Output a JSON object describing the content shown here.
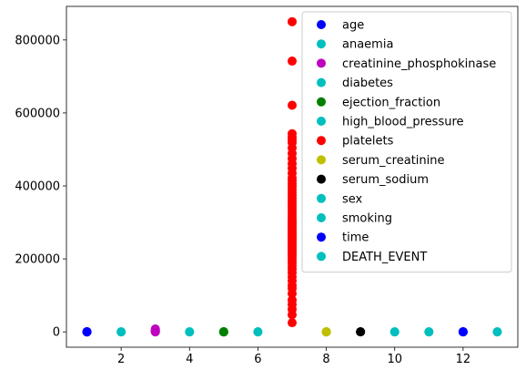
{
  "chart_data": {
    "type": "scatter",
    "title": "",
    "xlabel": "",
    "ylabel": "",
    "xlim": [
      0.4,
      13.6
    ],
    "ylim": [
      -42000,
      892000
    ],
    "x_ticks": [
      2,
      4,
      6,
      8,
      10,
      12
    ],
    "x_tick_labels": [
      "2",
      "4",
      "6",
      "8",
      "10",
      "12"
    ],
    "y_ticks": [
      0,
      200000,
      400000,
      600000,
      800000
    ],
    "y_tick_labels": [
      "0",
      "200000",
      "400000",
      "600000",
      "800000"
    ],
    "grid": false,
    "legend_position": "upper-right",
    "series": [
      {
        "name": "age",
        "color": "#0000ff",
        "x": [
          1,
          1,
          1,
          1,
          1
        ],
        "y": [
          40,
          50,
          60,
          70,
          95
        ]
      },
      {
        "name": "anaemia",
        "color": "#00bfbf",
        "x": [
          2,
          2
        ],
        "y": [
          0,
          1
        ]
      },
      {
        "name": "creatinine_phosphokinase",
        "color": "#bf00bf",
        "x": [
          3,
          3,
          3,
          3,
          3,
          3
        ],
        "y": [
          23,
          500,
          1500,
          3000,
          5000,
          7861
        ]
      },
      {
        "name": "diabetes",
        "color": "#00bfbf",
        "x": [
          4,
          4
        ],
        "y": [
          0,
          1
        ]
      },
      {
        "name": "ejection_fraction",
        "color": "#008000",
        "x": [
          5,
          5,
          5,
          5
        ],
        "y": [
          14,
          30,
          45,
          80
        ]
      },
      {
        "name": "high_blood_pressure",
        "color": "#00bfbf",
        "x": [
          6,
          6
        ],
        "y": [
          0,
          1
        ]
      },
      {
        "name": "platelets",
        "color": "#ff0000",
        "x": [
          7,
          7,
          7,
          7,
          7,
          7,
          7,
          7,
          7,
          7,
          7,
          7,
          7,
          7,
          7,
          7,
          7,
          7,
          7,
          7,
          7,
          7,
          7,
          7,
          7,
          7,
          7,
          7,
          7,
          7,
          7,
          7,
          7,
          7,
          7,
          7,
          7,
          7,
          7,
          7,
          7,
          7,
          7,
          7,
          7,
          7,
          7,
          7,
          7,
          7,
          7,
          7,
          7,
          7,
          7,
          7,
          7,
          7,
          7,
          7,
          7,
          7
        ],
        "y": [
          25100,
          47000,
          62000,
          75000,
          87000,
          105000,
          119000,
          127000,
          140000,
          151000,
          162000,
          172000,
          181000,
          189000,
          196000,
          204000,
          210000,
          216000,
          222000,
          228000,
          233000,
          238000,
          244000,
          250000,
          255000,
          260000,
          265000,
          270000,
          275000,
          280000,
          286000,
          292000,
          298000,
          304000,
          310000,
          318000,
          326000,
          334000,
          342000,
          350000,
          358000,
          366000,
          374000,
          382000,
          390000,
          398000,
          406000,
          414000,
          422000,
          435000,
          448000,
          461000,
          475000,
          489000,
          504000,
          518000,
          526000,
          533000,
          543000,
          621000,
          742000,
          850000
        ]
      },
      {
        "name": "serum_creatinine",
        "color": "#bfbf00",
        "x": [
          8,
          8,
          8,
          8
        ],
        "y": [
          0.5,
          1.1,
          3,
          9.4
        ]
      },
      {
        "name": "serum_sodium",
        "color": "#000000",
        "x": [
          9,
          9,
          9
        ],
        "y": [
          113,
          137,
          148
        ]
      },
      {
        "name": "sex",
        "color": "#00bfbf",
        "x": [
          10,
          10
        ],
        "y": [
          0,
          1
        ]
      },
      {
        "name": "smoking",
        "color": "#00bfbf",
        "x": [
          11,
          11
        ],
        "y": [
          0,
          1
        ]
      },
      {
        "name": "time",
        "color": "#0000ff",
        "x": [
          12,
          12,
          12,
          12
        ],
        "y": [
          4,
          100,
          200,
          285
        ]
      },
      {
        "name": "DEATH_EVENT",
        "color": "#00bfbf",
        "x": [
          13,
          13
        ],
        "y": [
          0,
          1
        ]
      }
    ]
  }
}
